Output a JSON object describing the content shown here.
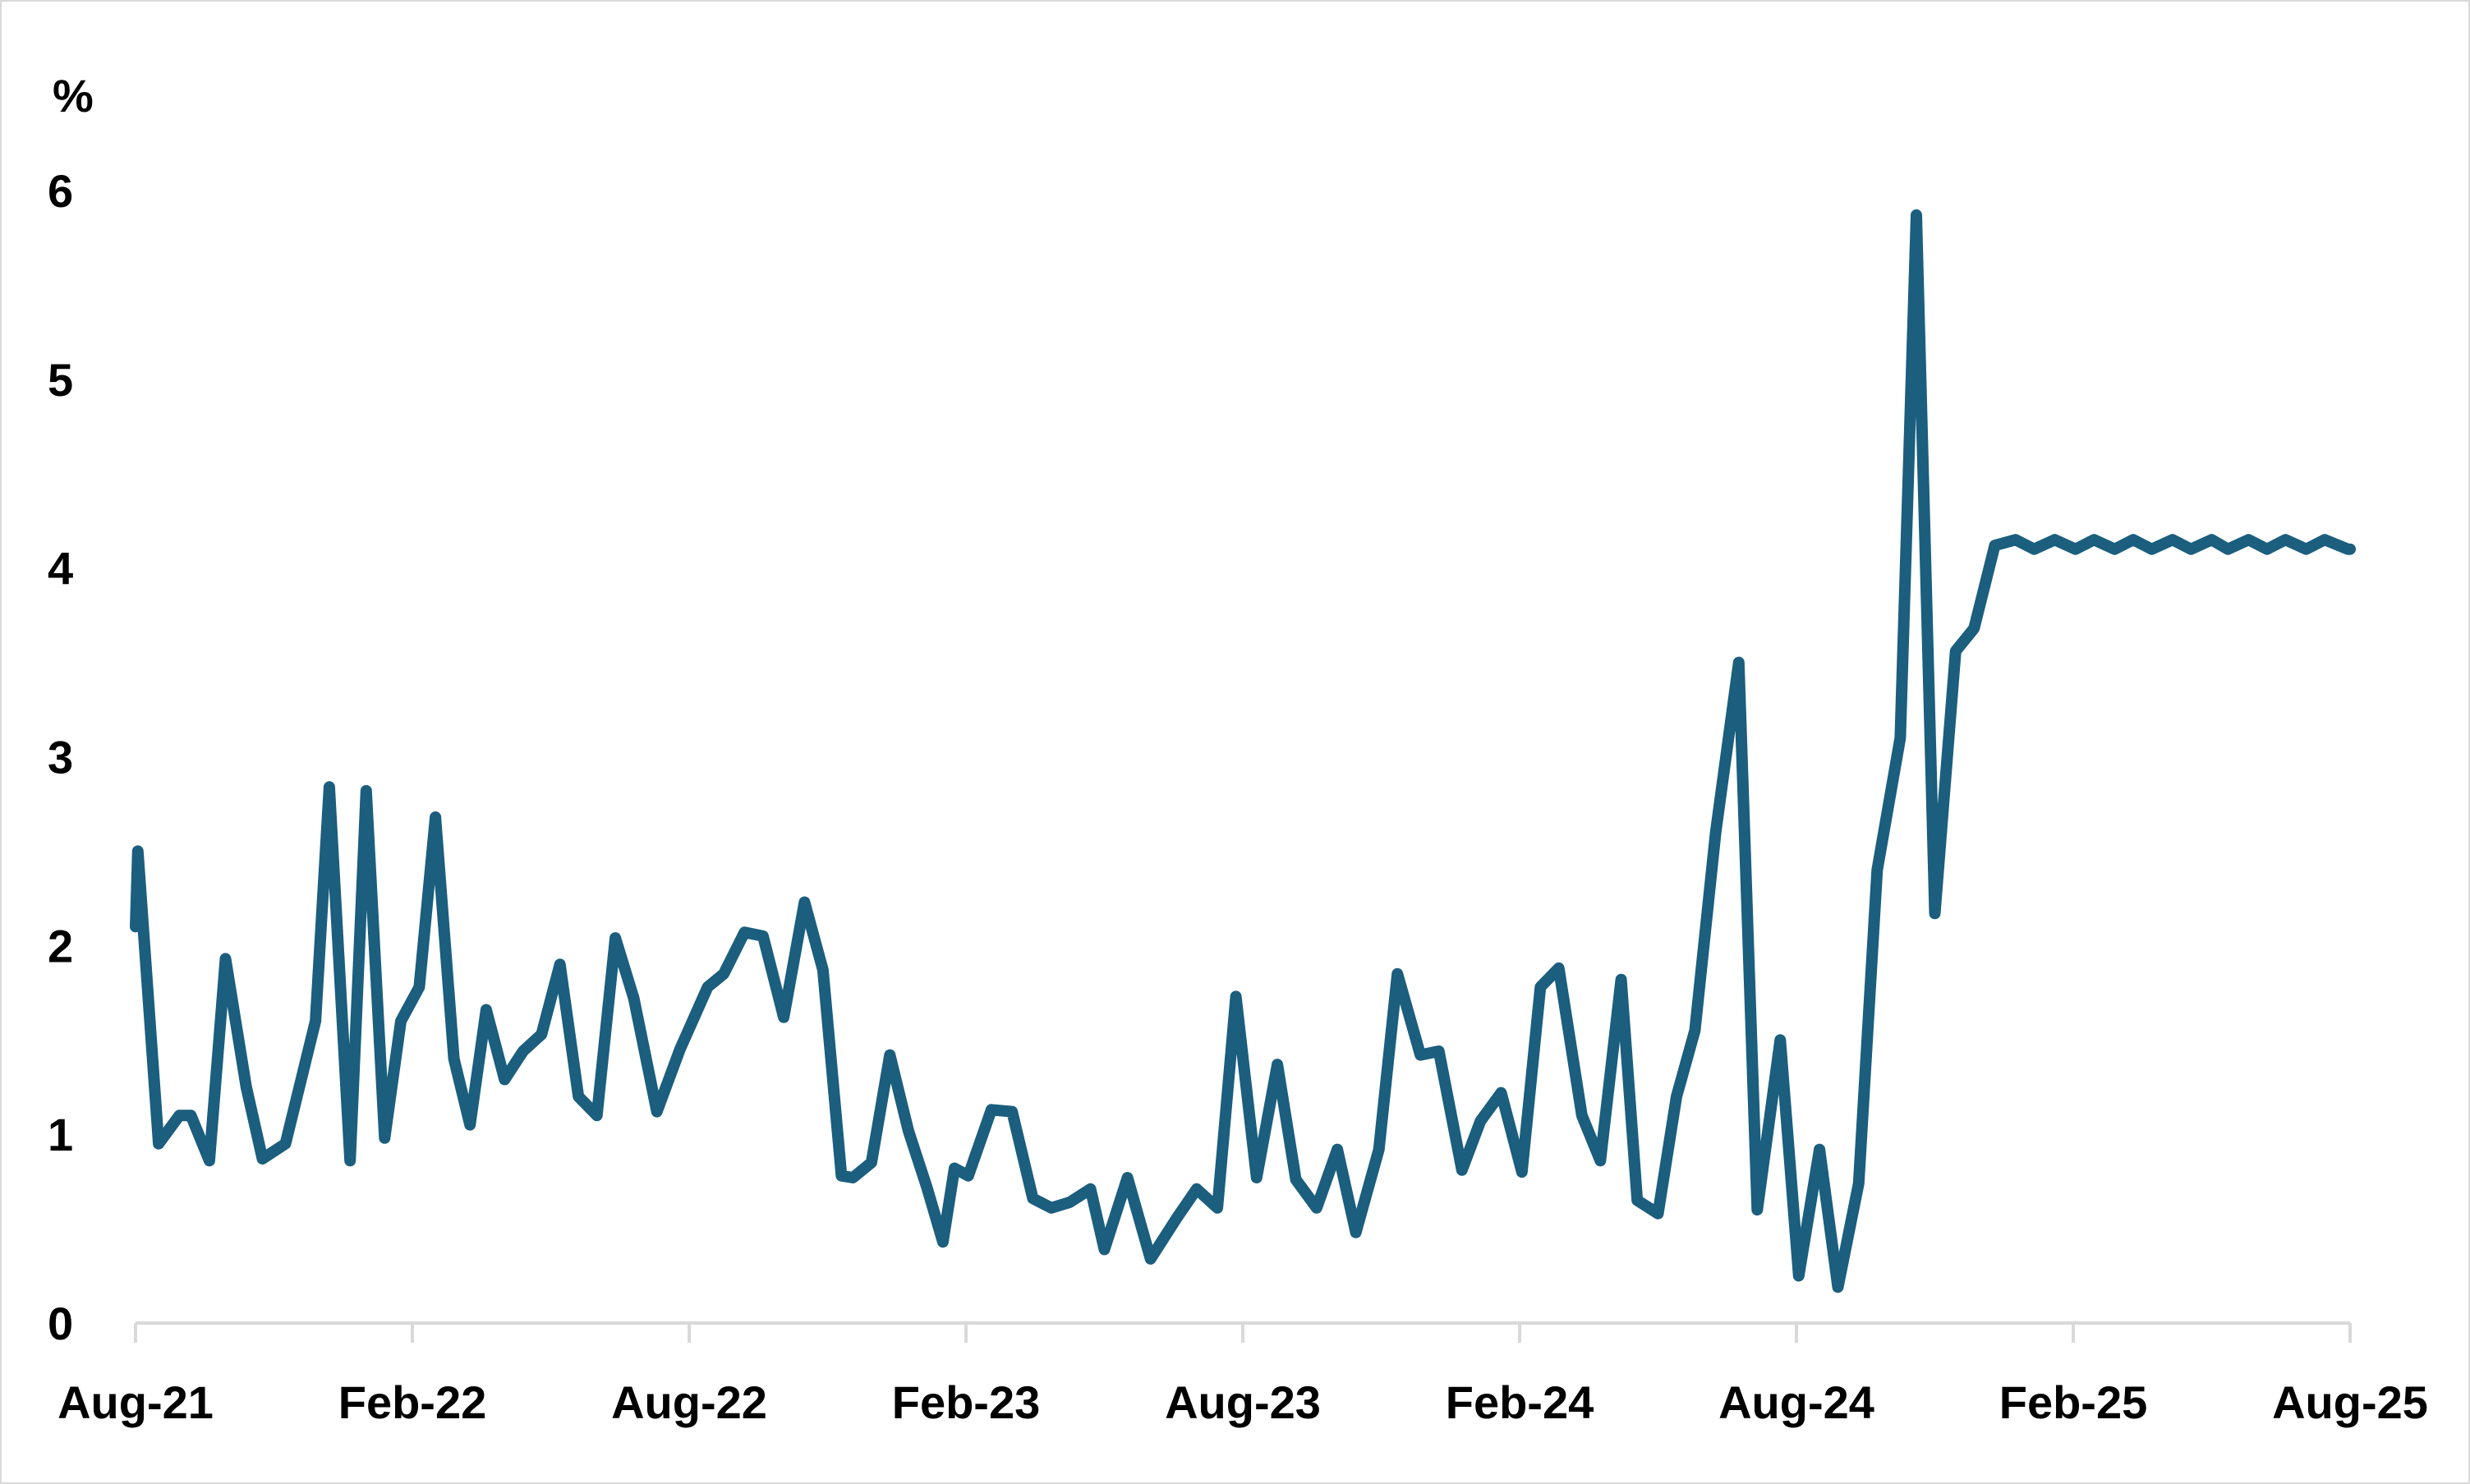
{
  "chart_data": {
    "type": "line",
    "title": "",
    "xlabel": "",
    "ylabel": "%",
    "ylim": [
      0,
      6
    ],
    "yticks": [
      "0",
      "1",
      "2",
      "3",
      "4",
      "5",
      "6"
    ],
    "xticks": [
      "Aug-21",
      "Feb-22",
      "Aug-22",
      "Feb-23",
      "Aug-23",
      "Feb-24",
      "Aug-24",
      "Feb-25",
      "Aug-25"
    ],
    "grid": false,
    "legend": "none",
    "line_color": "#1b5e7e",
    "x_start_month": "2021-08",
    "x_end_month": "2025-08",
    "series": [
      {
        "name": "",
        "x": [
          0.0,
          0.05,
          0.5,
          0.95,
          1.2,
          1.6,
          1.95,
          2.4,
          2.75,
          3.25,
          3.9,
          4.2,
          4.65,
          5.0,
          5.4,
          5.75,
          6.15,
          6.5,
          6.9,
          7.25,
          7.6,
          8.0,
          8.4,
          8.8,
          9.2,
          9.6,
          10.0,
          10.4,
          10.8,
          11.3,
          11.8,
          12.4,
          12.75,
          13.2,
          13.6,
          14.05,
          14.5,
          14.9,
          15.3,
          15.55,
          15.95,
          16.35,
          16.75,
          17.15,
          17.5,
          17.75,
          18.05,
          18.55,
          19.0,
          19.45,
          19.85,
          20.25,
          20.7,
          21.0,
          21.5,
          22.0,
          22.55,
          23.0,
          23.45,
          23.85,
          24.3,
          24.75,
          25.15,
          25.6,
          26.05,
          26.45,
          26.95,
          27.35,
          27.85,
          28.25,
          28.75,
          29.15,
          29.6,
          30.05,
          30.45,
          30.85,
          31.35,
          31.75,
          32.2,
          32.55,
          33.0,
          33.4,
          33.8,
          34.25,
          34.75,
          35.15,
          35.65,
          36.05,
          36.5,
          36.9,
          37.35,
          37.75,
          38.25,
          38.6,
          39.0,
          39.45,
          39.85,
          40.3,
          40.75,
          41.15,
          41.6,
          42.05,
          42.45,
          42.9,
          43.3,
          43.7,
          44.15,
          44.55,
          45.0,
          45.35,
          45.8,
          46.2,
          46.6,
          47.05,
          47.45,
          47.95,
          48.0
        ],
        "values": [
          2.1,
          2.5,
          0.95,
          1.1,
          1.1,
          0.86,
          1.93,
          1.25,
          0.87,
          0.95,
          1.6,
          2.84,
          0.86,
          2.82,
          0.98,
          1.6,
          1.78,
          2.68,
          1.4,
          1.05,
          1.66,
          1.29,
          1.44,
          1.53,
          1.9,
          1.2,
          1.1,
          2.04,
          1.72,
          1.12,
          1.45,
          1.78,
          1.85,
          2.07,
          2.05,
          1.62,
          2.23,
          1.87,
          0.78,
          0.77,
          0.85,
          1.42,
          1.02,
          0.72,
          0.43,
          0.82,
          0.78,
          1.13,
          1.12,
          0.66,
          0.61,
          0.64,
          0.71,
          0.39,
          0.77,
          0.34,
          0.55,
          0.71,
          0.61,
          1.73,
          0.77,
          1.37,
          0.76,
          0.61,
          0.92,
          0.48,
          0.92,
          1.85,
          1.42,
          1.44,
          0.81,
          1.07,
          1.22,
          0.8,
          1.78,
          1.88,
          1.1,
          0.86,
          1.82,
          0.65,
          0.58,
          1.2,
          1.55,
          2.6,
          3.5,
          0.6,
          1.5,
          0.25,
          0.92,
          0.19,
          0.74,
          2.4,
          3.1,
          5.87,
          2.17,
          3.56,
          3.68,
          4.12,
          4.15,
          4.1,
          4.15,
          4.1,
          4.15,
          4.1,
          4.15,
          4.1,
          4.15,
          4.1,
          4.15,
          4.1,
          4.15,
          4.1,
          4.15,
          4.1,
          4.15,
          4.1,
          4.1
        ]
      }
    ]
  }
}
